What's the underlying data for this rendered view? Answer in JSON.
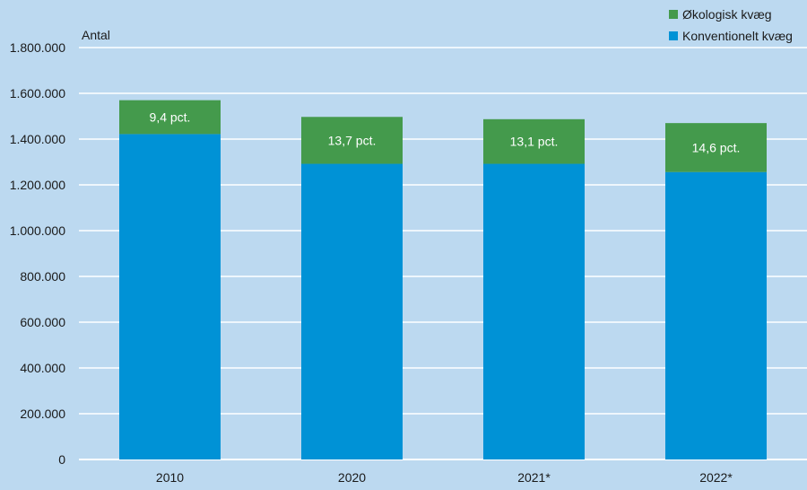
{
  "chart_data": {
    "type": "bar",
    "stacked": true,
    "ylabel": "Antal",
    "ylim": [
      0,
      1800000
    ],
    "y_ticks": [
      "0",
      "200.000",
      "400.000",
      "600.000",
      "800.000",
      "1.000.000",
      "1.200.000",
      "1.400.000",
      "1.600.000",
      "1.800.000"
    ],
    "categories": [
      "2010",
      "2020",
      "2021*",
      "2022*"
    ],
    "series": [
      {
        "name": "Konventionelt kvæg",
        "color": "#0092d6",
        "values": [
          1422000,
          1292000,
          1292000,
          1256000
        ]
      },
      {
        "name": "Økologisk kvæg",
        "color": "#449a4c",
        "values": [
          148000,
          205000,
          195000,
          214000
        ]
      }
    ],
    "data_labels": [
      "9,4 pct.",
      "13,7 pct.",
      "13,1 pct.",
      "14,6 pct."
    ],
    "grid": true,
    "legend_position": "top-right"
  }
}
